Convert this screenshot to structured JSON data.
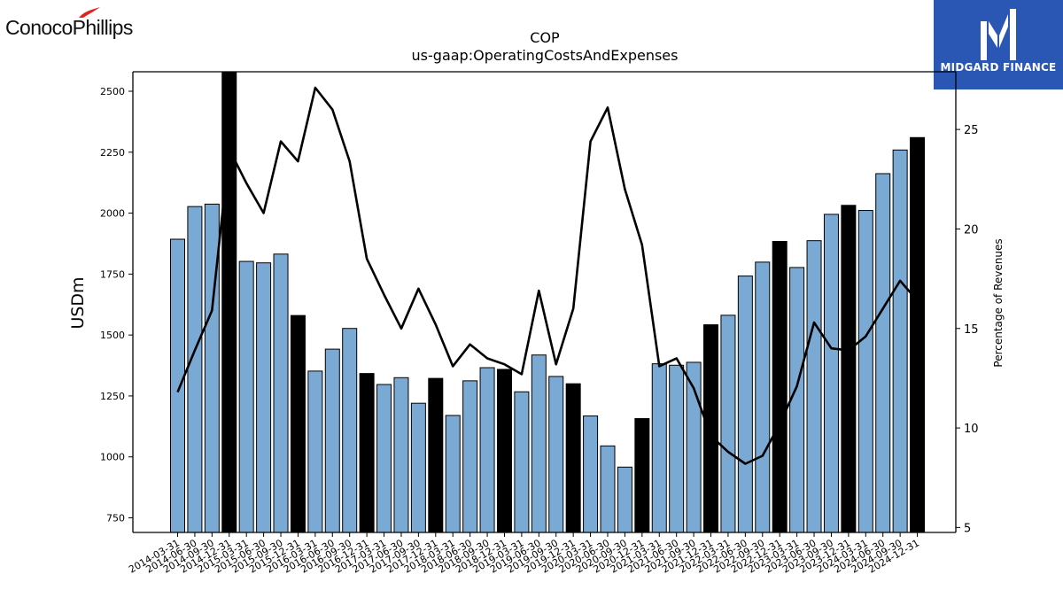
{
  "brand_left": {
    "name": "ConocoPhillips",
    "accent": "#e2231a"
  },
  "brand_right": {
    "name": "MIDGARD FINANCE",
    "bg": "#2a57b3"
  },
  "chart_data": {
    "type": "bar",
    "title": "COP",
    "subtitle": "us-gaap:OperatingCostsAndExpenses",
    "ylabel": "USDm",
    "y2label": "Percentage of Revenues",
    "ylim": [
      690,
      2580
    ],
    "y2lim": [
      4.75,
      27.9
    ],
    "yticks": [
      750,
      1000,
      1250,
      1500,
      1750,
      2000,
      2250,
      2500
    ],
    "y2ticks": [
      5,
      10,
      15,
      20,
      25
    ],
    "colors": {
      "quarter_bar": "#7aaad3",
      "year_end_bar": "#000000",
      "line": "#000000"
    },
    "categories": [
      "2014-03-31",
      "2014-06-30",
      "2014-09-30",
      "2014-12-31",
      "2015-03-31",
      "2015-06-30",
      "2015-09-30",
      "2015-12-31",
      "2016-03-31",
      "2016-06-30",
      "2016-09-30",
      "2016-12-31",
      "2017-03-31",
      "2017-06-30",
      "2017-09-30",
      "2017-12-31",
      "2018-03-31",
      "2018-06-30",
      "2018-09-30",
      "2018-12-31",
      "2019-03-31",
      "2019-06-30",
      "2019-09-30",
      "2019-12-31",
      "2020-03-31",
      "2020-06-30",
      "2020-09-30",
      "2020-12-31",
      "2021-03-31",
      "2021-06-30",
      "2021-09-30",
      "2021-12-31",
      "2022-03-31",
      "2022-06-30",
      "2022-09-30",
      "2022-12-31",
      "2023-03-31",
      "2023-06-30",
      "2023-09-30",
      "2023-12-31",
      "2024-03-31",
      "2024-06-30",
      "2024-09-30",
      "2024-12-31"
    ],
    "series": [
      {
        "type": "bar",
        "axis": "left",
        "values": [
          1893,
          2027,
          2037,
          2580,
          1802,
          1796,
          1832,
          1580,
          1352,
          1442,
          1527,
          1342,
          1297,
          1325,
          1220,
          1322,
          1170,
          1312,
          1366,
          1359,
          1267,
          1418,
          1330,
          1300,
          1168,
          1045,
          958,
          1157,
          1382,
          1376,
          1388,
          1542,
          1581,
          1742,
          1799,
          1884,
          1777,
          1887,
          1995,
          2032,
          2011,
          2162,
          2259,
          2310
        ]
      },
      {
        "type": "line",
        "axis": "right",
        "values": [
          11.8,
          13.9,
          15.9,
          24.0,
          22.3,
          20.8,
          24.4,
          23.4,
          27.1,
          26.0,
          23.4,
          18.5,
          16.7,
          15.0,
          17.0,
          15.2,
          13.1,
          14.2,
          13.5,
          13.2,
          12.7,
          16.9,
          13.2,
          16.0,
          24.4,
          26.1,
          22.0,
          19.2,
          13.1,
          13.5,
          12.0,
          9.6,
          8.8,
          8.2,
          8.6,
          10.2,
          12.1,
          15.3,
          14.0,
          13.9,
          14.6,
          16.0,
          17.4,
          16.4
        ]
      }
    ]
  }
}
